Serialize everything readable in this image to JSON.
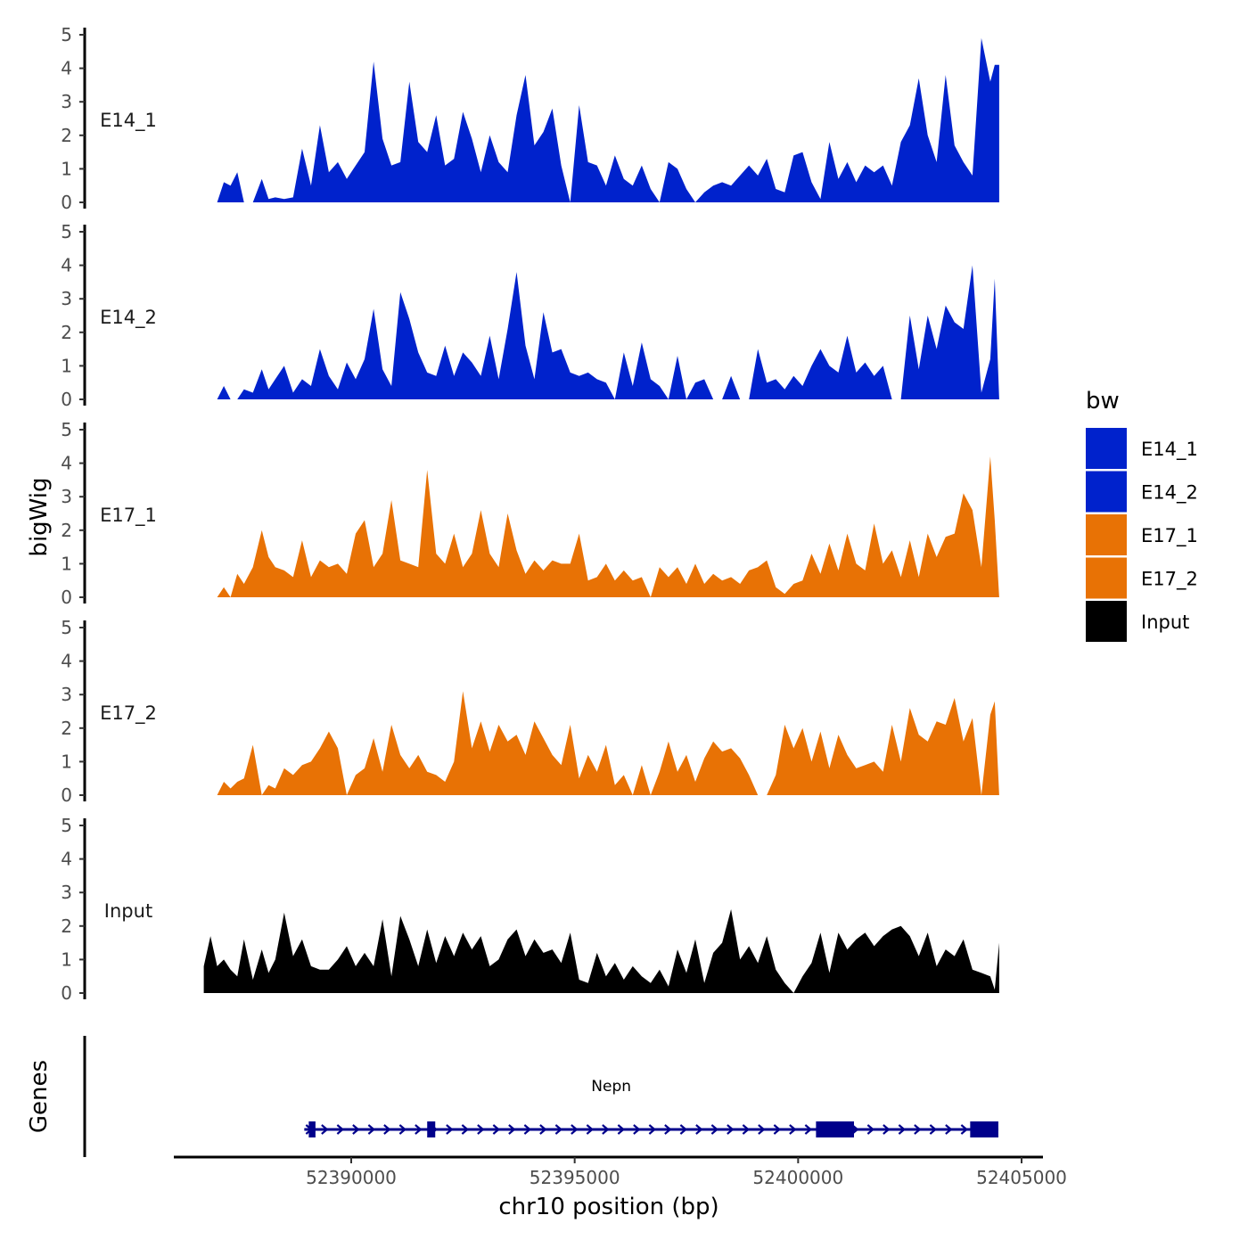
{
  "chart_data": {
    "type": "area",
    "title": "",
    "xlabel": "chr10 position (bp)",
    "ylabel": "bigWig",
    "genes_label": "Genes",
    "x_range": [
      52386000,
      52405300
    ],
    "x_ticks": [
      52390000,
      52395000,
      52400000,
      52405000
    ],
    "x_tick_labels": [
      "52390000",
      "52395000",
      "52400000",
      "52405000"
    ],
    "ylim": [
      0,
      5
    ],
    "y_ticks": [
      0,
      1,
      2,
      3,
      4,
      5
    ],
    "y_tick_labels": [
      "0",
      "1",
      "2",
      "3",
      "4",
      "5"
    ],
    "legend": {
      "title": "bw",
      "items": [
        {
          "label": "E14_1",
          "color": "#0022cc"
        },
        {
          "label": "E14_2",
          "color": "#0022cc"
        },
        {
          "label": "E17_1",
          "color": "#e87205"
        },
        {
          "label": "E17_2",
          "color": "#e87205"
        },
        {
          "label": "Input",
          "color": "#000000"
        }
      ]
    },
    "tracks": [
      {
        "name": "E14_1",
        "color": "#0022cc",
        "x": [
          52387000,
          52387150,
          52387300,
          52387450,
          52387600,
          52387800,
          52388000,
          52388150,
          52388300,
          52388500,
          52388700,
          52388900,
          52389100,
          52389300,
          52389500,
          52389700,
          52389900,
          52390100,
          52390300,
          52390500,
          52390700,
          52390900,
          52391100,
          52391300,
          52391500,
          52391700,
          52391900,
          52392100,
          52392300,
          52392500,
          52392700,
          52392900,
          52393100,
          52393300,
          52393500,
          52393700,
          52393900,
          52394100,
          52394300,
          52394500,
          52394700,
          52394900,
          52395100,
          52395300,
          52395500,
          52395700,
          52395900,
          52396100,
          52396300,
          52396500,
          52396700,
          52396900,
          52397100,
          52397300,
          52397500,
          52397700,
          52397900,
          52398100,
          52398300,
          52398500,
          52398700,
          52398900,
          52399100,
          52399300,
          52399500,
          52399700,
          52399900,
          52400100,
          52400300,
          52400500,
          52400700,
          52400900,
          52401100,
          52401300,
          52401500,
          52401700,
          52401900,
          52402100,
          52402300,
          52402500,
          52402700,
          52402900,
          52403100,
          52403300,
          52403500,
          52403700,
          52403900,
          52404100,
          52404300,
          52404400,
          52404500
        ],
        "values": [
          0,
          0.6,
          0.5,
          0.9,
          0,
          0,
          0.7,
          0.1,
          0.15,
          0.1,
          0.15,
          1.6,
          0.5,
          2.3,
          0.9,
          1.2,
          0.7,
          1.1,
          1.5,
          4.2,
          1.9,
          1.1,
          1.2,
          3.6,
          1.8,
          1.5,
          2.6,
          1.1,
          1.3,
          2.7,
          1.9,
          0.9,
          2.0,
          1.2,
          0.9,
          2.6,
          3.8,
          1.7,
          2.1,
          2.8,
          1.1,
          0,
          2.9,
          1.2,
          1.1,
          0.5,
          1.4,
          0.7,
          0.5,
          1.1,
          0.4,
          0,
          1.2,
          1.0,
          0.4,
          0,
          0.3,
          0.5,
          0.6,
          0.5,
          0.8,
          1.1,
          0.8,
          1.3,
          0.4,
          0.3,
          1.4,
          1.5,
          0.6,
          0.1,
          1.8,
          0.7,
          1.2,
          0.6,
          1.1,
          0.9,
          1.1,
          0.5,
          1.8,
          2.3,
          3.7,
          2.0,
          1.2,
          3.8,
          1.7,
          1.2,
          0.8,
          4.9,
          3.6,
          4.1,
          4.1
        ]
      },
      {
        "name": "E14_2",
        "color": "#0022cc",
        "x": [
          52387000,
          52387150,
          52387300,
          52387450,
          52387600,
          52387800,
          52388000,
          52388150,
          52388300,
          52388500,
          52388700,
          52388900,
          52389100,
          52389300,
          52389500,
          52389700,
          52389900,
          52390100,
          52390300,
          52390500,
          52390700,
          52390900,
          52391100,
          52391300,
          52391500,
          52391700,
          52391900,
          52392100,
          52392300,
          52392500,
          52392700,
          52392900,
          52393100,
          52393300,
          52393500,
          52393700,
          52393900,
          52394100,
          52394300,
          52394500,
          52394700,
          52394900,
          52395100,
          52395300,
          52395500,
          52395700,
          52395900,
          52396100,
          52396300,
          52396500,
          52396700,
          52396900,
          52397100,
          52397300,
          52397500,
          52397700,
          52397900,
          52398100,
          52398300,
          52398500,
          52398700,
          52398900,
          52399100,
          52399300,
          52399500,
          52399700,
          52399900,
          52400100,
          52400300,
          52400500,
          52400700,
          52400900,
          52401100,
          52401300,
          52401500,
          52401700,
          52401900,
          52402100,
          52402300,
          52402500,
          52402700,
          52402900,
          52403100,
          52403300,
          52403500,
          52403700,
          52403900,
          52404100,
          52404300,
          52404400,
          52404500
        ],
        "values": [
          0,
          0.4,
          0,
          0,
          0.3,
          0.2,
          0.9,
          0.3,
          0.6,
          1.0,
          0.2,
          0.6,
          0.4,
          1.5,
          0.7,
          0.3,
          1.1,
          0.6,
          1.2,
          2.7,
          0.9,
          0.4,
          3.2,
          2.4,
          1.4,
          0.8,
          0.7,
          1.6,
          0.7,
          1.4,
          1.1,
          0.7,
          1.9,
          0.6,
          2.1,
          3.8,
          1.6,
          0.6,
          2.6,
          1.4,
          1.5,
          0.8,
          0.7,
          0.8,
          0.6,
          0.5,
          0,
          1.4,
          0.4,
          1.7,
          0.6,
          0.4,
          0,
          1.3,
          0,
          0.5,
          0.6,
          0,
          0,
          0.7,
          0,
          0,
          1.5,
          0.5,
          0.6,
          0.3,
          0.7,
          0.4,
          1.0,
          1.5,
          1.0,
          0.8,
          1.9,
          0.8,
          1.1,
          0.7,
          1.0,
          0,
          0,
          2.5,
          0.9,
          2.5,
          1.5,
          2.8,
          2.3,
          2.1,
          4.0,
          0.2,
          1.2,
          3.6,
          0
        ]
      },
      {
        "name": "E17_1",
        "color": "#e87205",
        "x": [
          52387000,
          52387150,
          52387300,
          52387450,
          52387600,
          52387800,
          52388000,
          52388150,
          52388300,
          52388500,
          52388700,
          52388900,
          52389100,
          52389300,
          52389500,
          52389700,
          52389900,
          52390100,
          52390300,
          52390500,
          52390700,
          52390900,
          52391100,
          52391300,
          52391500,
          52391700,
          52391900,
          52392100,
          52392300,
          52392500,
          52392700,
          52392900,
          52393100,
          52393300,
          52393500,
          52393700,
          52393900,
          52394100,
          52394300,
          52394500,
          52394700,
          52394900,
          52395100,
          52395300,
          52395500,
          52395700,
          52395900,
          52396100,
          52396300,
          52396500,
          52396700,
          52396900,
          52397100,
          52397300,
          52397500,
          52397700,
          52397900,
          52398100,
          52398300,
          52398500,
          52398700,
          52398900,
          52399100,
          52399300,
          52399500,
          52399700,
          52399900,
          52400100,
          52400300,
          52400500,
          52400700,
          52400900,
          52401100,
          52401300,
          52401500,
          52401700,
          52401900,
          52402100,
          52402300,
          52402500,
          52402700,
          52402900,
          52403100,
          52403300,
          52403500,
          52403700,
          52403900,
          52404100,
          52404300,
          52404400,
          52404500
        ],
        "values": [
          0,
          0.3,
          0,
          0.7,
          0.4,
          0.9,
          2.0,
          1.2,
          0.9,
          0.8,
          0.6,
          1.7,
          0.6,
          1.1,
          0.9,
          1.0,
          0.7,
          1.9,
          2.3,
          0.9,
          1.3,
          2.9,
          1.1,
          1.0,
          0.9,
          3.8,
          1.3,
          1.0,
          1.9,
          0.9,
          1.3,
          2.6,
          1.3,
          0.9,
          2.5,
          1.4,
          0.7,
          1.1,
          0.8,
          1.1,
          1.0,
          1.0,
          1.9,
          0.5,
          0.6,
          1.0,
          0.5,
          0.8,
          0.5,
          0.6,
          0,
          0.9,
          0.6,
          0.9,
          0.4,
          1.0,
          0.4,
          0.7,
          0.5,
          0.6,
          0.4,
          0.8,
          0.9,
          1.1,
          0.3,
          0.1,
          0.4,
          0.5,
          1.3,
          0.7,
          1.6,
          0.8,
          1.9,
          1.0,
          0.8,
          2.2,
          1.0,
          1.4,
          0.6,
          1.7,
          0.6,
          1.9,
          1.2,
          1.8,
          1.9,
          3.1,
          2.6,
          0.9,
          4.2,
          2.3,
          0
        ]
      },
      {
        "name": "E17_2",
        "color": "#e87205",
        "x": [
          52387000,
          52387150,
          52387300,
          52387450,
          52387600,
          52387800,
          52388000,
          52388150,
          52388300,
          52388500,
          52388700,
          52388900,
          52389100,
          52389300,
          52389500,
          52389700,
          52389900,
          52390100,
          52390300,
          52390500,
          52390700,
          52390900,
          52391100,
          52391300,
          52391500,
          52391700,
          52391900,
          52392100,
          52392300,
          52392500,
          52392700,
          52392900,
          52393100,
          52393300,
          52393500,
          52393700,
          52393900,
          52394100,
          52394300,
          52394500,
          52394700,
          52394900,
          52395100,
          52395300,
          52395500,
          52395700,
          52395900,
          52396100,
          52396300,
          52396500,
          52396700,
          52396900,
          52397100,
          52397300,
          52397500,
          52397700,
          52397900,
          52398100,
          52398300,
          52398500,
          52398700,
          52398900,
          52399100,
          52399300,
          52399500,
          52399700,
          52399900,
          52400100,
          52400300,
          52400500,
          52400700,
          52400900,
          52401100,
          52401300,
          52401500,
          52401700,
          52401900,
          52402100,
          52402300,
          52402500,
          52402700,
          52402900,
          52403100,
          52403300,
          52403500,
          52403700,
          52403900,
          52404100,
          52404300,
          52404400,
          52404500
        ],
        "values": [
          0,
          0.4,
          0.2,
          0.4,
          0.5,
          1.5,
          0,
          0.3,
          0.2,
          0.8,
          0.6,
          0.9,
          1.0,
          1.4,
          1.9,
          1.4,
          0,
          0.6,
          0.8,
          1.7,
          0.7,
          2.1,
          1.2,
          0.8,
          1.2,
          0.7,
          0.6,
          0.4,
          1.0,
          3.1,
          1.4,
          2.2,
          1.3,
          2.1,
          1.6,
          1.8,
          1.2,
          2.2,
          1.7,
          1.2,
          0.9,
          2.1,
          0.5,
          1.2,
          0.7,
          1.5,
          0.3,
          0.6,
          0,
          0.9,
          0,
          0.7,
          1.6,
          0.7,
          1.2,
          0.4,
          1.1,
          1.6,
          1.3,
          1.4,
          1.1,
          0.6,
          0,
          0,
          0.6,
          2.1,
          1.4,
          2.0,
          1.0,
          1.9,
          0.8,
          1.8,
          1.2,
          0.8,
          0.9,
          1.0,
          0.7,
          2.1,
          1.0,
          2.6,
          1.8,
          1.6,
          2.2,
          2.1,
          2.9,
          1.6,
          2.3,
          0,
          2.4,
          2.8,
          0
        ]
      },
      {
        "name": "Input",
        "color": "#000000",
        "x": [
          52386700,
          52386850,
          52387000,
          52387150,
          52387300,
          52387450,
          52387600,
          52387800,
          52388000,
          52388150,
          52388300,
          52388500,
          52388700,
          52388900,
          52389100,
          52389300,
          52389500,
          52389700,
          52389900,
          52390100,
          52390300,
          52390500,
          52390700,
          52390900,
          52391100,
          52391300,
          52391500,
          52391700,
          52391900,
          52392100,
          52392300,
          52392500,
          52392700,
          52392900,
          52393100,
          52393300,
          52393500,
          52393700,
          52393900,
          52394100,
          52394300,
          52394500,
          52394700,
          52394900,
          52395100,
          52395300,
          52395500,
          52395700,
          52395900,
          52396100,
          52396300,
          52396500,
          52396700,
          52396900,
          52397100,
          52397300,
          52397500,
          52397700,
          52397900,
          52398100,
          52398300,
          52398500,
          52398700,
          52398900,
          52399100,
          52399300,
          52399500,
          52399700,
          52399900,
          52400100,
          52400300,
          52400500,
          52400700,
          52400900,
          52401100,
          52401300,
          52401500,
          52401700,
          52401900,
          52402100,
          52402300,
          52402500,
          52402700,
          52402900,
          52403100,
          52403300,
          52403500,
          52403700,
          52403900,
          52404100,
          52404300,
          52404400,
          52404500
        ],
        "values": [
          0.8,
          1.7,
          0.8,
          1.0,
          0.7,
          0.5,
          1.6,
          0.4,
          1.3,
          0.6,
          1.0,
          2.4,
          1.1,
          1.6,
          0.8,
          0.7,
          0.7,
          1.0,
          1.4,
          0.8,
          1.2,
          0.8,
          2.2,
          0.5,
          2.3,
          1.6,
          0.8,
          1.9,
          0.9,
          1.7,
          1.1,
          1.8,
          1.3,
          1.7,
          0.8,
          1.0,
          1.6,
          1.9,
          1.1,
          1.6,
          1.2,
          1.3,
          0.9,
          1.8,
          0.4,
          0.3,
          1.2,
          0.5,
          0.9,
          0.4,
          0.8,
          0.5,
          0.3,
          0.7,
          0.2,
          1.3,
          0.6,
          1.6,
          0.3,
          1.2,
          1.5,
          2.5,
          1.0,
          1.4,
          0.9,
          1.7,
          0.7,
          0.3,
          0,
          0.5,
          0.9,
          1.8,
          0.6,
          1.8,
          1.3,
          1.6,
          1.8,
          1.4,
          1.7,
          1.9,
          2.0,
          1.7,
          1.1,
          1.8,
          0.8,
          1.3,
          1.1,
          1.6,
          0.7,
          0.6,
          0.5,
          0.1,
          1.5
        ]
      }
    ],
    "gene": {
      "name": "Nepn",
      "color": "#00008b",
      "strand": "+",
      "start": 52388950,
      "end": 52404480,
      "exons": [
        [
          52389050,
          52389200
        ],
        [
          52391700,
          52391880
        ],
        [
          52400400,
          52401250
        ],
        [
          52403850,
          52404480
        ]
      ]
    }
  }
}
